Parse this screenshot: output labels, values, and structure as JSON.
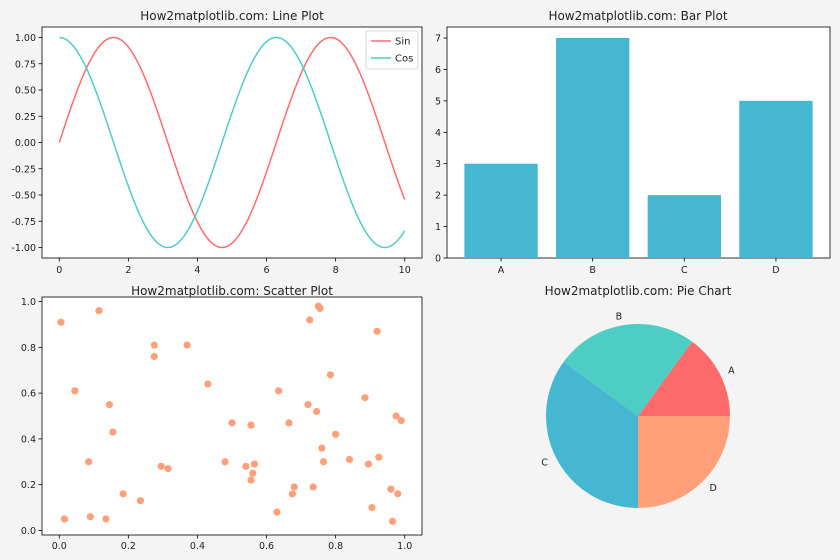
{
  "chart_data": [
    {
      "type": "line",
      "title": "How2matplotlib.com: Line Plot",
      "xlim": [
        -0.5,
        10.5
      ],
      "ylim": [
        -1.1,
        1.1
      ],
      "xticks": [
        "0",
        "2",
        "4",
        "6",
        "8",
        "10"
      ],
      "yticks": [
        "1.00",
        "0.75",
        "0.50",
        "0.25",
        "0.00",
        "-0.25",
        "-0.50",
        "-0.75",
        "-1.00"
      ],
      "x": [
        0,
        0.25,
        0.5,
        0.75,
        1,
        1.25,
        1.5,
        1.75,
        2,
        2.25,
        2.5,
        2.75,
        3,
        3.25,
        3.5,
        3.75,
        4,
        4.25,
        4.5,
        4.75,
        5,
        5.25,
        5.5,
        5.75,
        6,
        6.25,
        6.5,
        6.75,
        7,
        7.25,
        7.5,
        7.75,
        8,
        8.25,
        8.5,
        8.75,
        9,
        9.25,
        9.5,
        9.75,
        10
      ],
      "series": [
        {
          "name": "Sin",
          "color": "#ff6b6b",
          "values": [
            0,
            0.247,
            0.479,
            0.682,
            0.841,
            0.949,
            0.997,
            0.984,
            0.909,
            0.778,
            0.598,
            0.382,
            0.141,
            -0.108,
            -0.351,
            -0.572,
            -0.757,
            -0.895,
            -0.978,
            -0.999,
            -0.959,
            -0.859,
            -0.706,
            -0.508,
            -0.279,
            -0.033,
            0.215,
            0.451,
            0.657,
            0.824,
            0.938,
            0.994,
            0.989,
            0.923,
            0.798,
            0.625,
            0.412,
            0.174,
            -0.075,
            -0.319,
            -0.544
          ]
        },
        {
          "name": "Cos",
          "color": "#4ecdc4",
          "values": [
            1,
            0.969,
            0.878,
            0.732,
            0.54,
            0.315,
            0.071,
            -0.178,
            -0.416,
            -0.628,
            -0.801,
            -0.924,
            -0.99,
            -0.994,
            -0.936,
            -0.82,
            -0.654,
            -0.446,
            -0.211,
            0.038,
            0.284,
            0.512,
            0.709,
            0.861,
            0.96,
            0.999,
            0.977,
            0.893,
            0.754,
            0.567,
            0.347,
            0.105,
            -0.146,
            -0.385,
            -0.602,
            -0.781,
            -0.911,
            -0.985,
            -0.997,
            -0.948,
            -0.839
          ]
        }
      ],
      "legend": "top-right"
    },
    {
      "type": "bar",
      "title": "How2matplotlib.com: Bar Plot",
      "categories": [
        "A",
        "B",
        "C",
        "D"
      ],
      "values": [
        3,
        7,
        2,
        5
      ],
      "ylim": [
        0,
        7.35
      ],
      "yticks": [
        "0",
        "1",
        "2",
        "3",
        "4",
        "5",
        "6",
        "7"
      ],
      "color": "#45b7d1"
    },
    {
      "type": "scatter",
      "title": "How2matplotlib.com: Scatter Plot",
      "xlim": [
        -0.05,
        1.05
      ],
      "ylim": [
        -0.02,
        1.02
      ],
      "xticks": [
        "0.0",
        "0.2",
        "0.4",
        "0.6",
        "0.8",
        "1.0"
      ],
      "yticks": [
        "0.0",
        "0.2",
        "0.4",
        "0.6",
        "0.8",
        "1.0"
      ],
      "color": "#ffa07a",
      "points": [
        [
          0.005,
          0.91
        ],
        [
          0.015,
          0.05
        ],
        [
          0.045,
          0.61
        ],
        [
          0.085,
          0.3
        ],
        [
          0.09,
          0.06
        ],
        [
          0.115,
          0.96
        ],
        [
          0.135,
          0.05
        ],
        [
          0.145,
          0.55
        ],
        [
          0.155,
          0.43
        ],
        [
          0.185,
          0.16
        ],
        [
          0.235,
          0.13
        ],
        [
          0.275,
          0.81
        ],
        [
          0.275,
          0.76
        ],
        [
          0.295,
          0.28
        ],
        [
          0.315,
          0.27
        ],
        [
          0.37,
          0.81
        ],
        [
          0.43,
          0.64
        ],
        [
          0.48,
          0.3
        ],
        [
          0.5,
          0.47
        ],
        [
          0.54,
          0.28
        ],
        [
          0.555,
          0.22
        ],
        [
          0.555,
          0.46
        ],
        [
          0.56,
          0.25
        ],
        [
          0.565,
          0.29
        ],
        [
          0.63,
          0.08
        ],
        [
          0.635,
          0.61
        ],
        [
          0.665,
          0.47
        ],
        [
          0.675,
          0.16
        ],
        [
          0.68,
          0.19
        ],
        [
          0.72,
          0.55
        ],
        [
          0.725,
          0.92
        ],
        [
          0.735,
          0.19
        ],
        [
          0.745,
          0.52
        ],
        [
          0.75,
          0.98
        ],
        [
          0.755,
          0.97
        ],
        [
          0.76,
          0.36
        ],
        [
          0.765,
          0.3
        ],
        [
          0.785,
          0.68
        ],
        [
          0.8,
          0.42
        ],
        [
          0.84,
          0.31
        ],
        [
          0.885,
          0.58
        ],
        [
          0.895,
          0.29
        ],
        [
          0.905,
          0.1
        ],
        [
          0.92,
          0.87
        ],
        [
          0.925,
          0.32
        ],
        [
          0.96,
          0.18
        ],
        [
          0.965,
          0.04
        ],
        [
          0.975,
          0.5
        ],
        [
          0.98,
          0.16
        ],
        [
          0.99,
          0.48
        ]
      ]
    },
    {
      "type": "pie",
      "title": "How2matplotlib.com: Pie Chart",
      "labels": [
        "A",
        "B",
        "C",
        "D"
      ],
      "values": [
        15,
        25,
        35,
        25
      ],
      "colors": [
        "#ff6b6b",
        "#4ecdc4",
        "#45b7d1",
        "#ffa07a"
      ],
      "startangle": 0
    }
  ]
}
